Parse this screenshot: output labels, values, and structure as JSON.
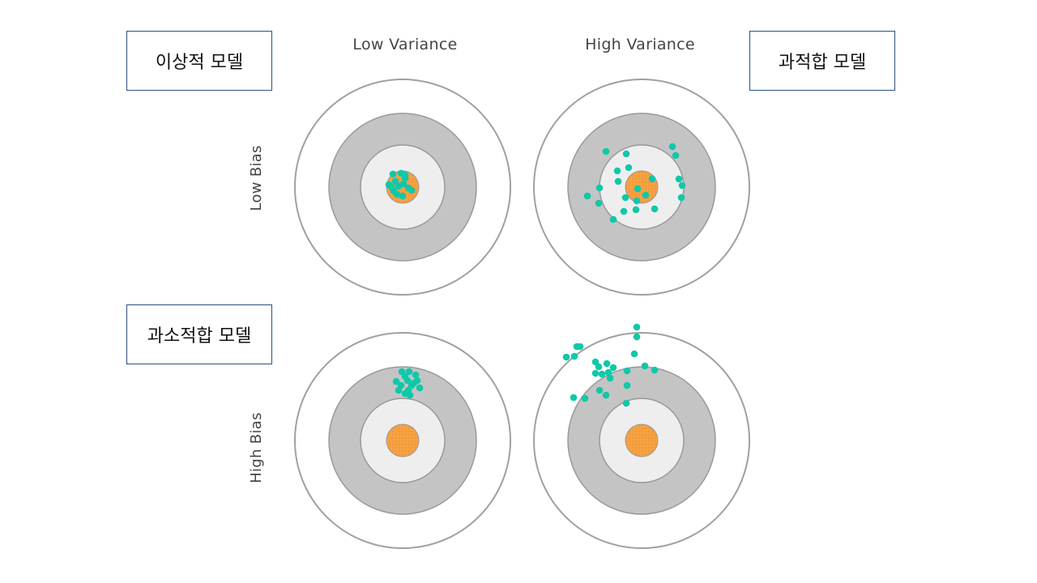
{
  "columns": [
    "Low Variance",
    "High Variance"
  ],
  "rows": [
    "Low Bias",
    "High Bias"
  ],
  "model_labels": {
    "ideal": "이상적 모델",
    "overfit": "과적합 모델",
    "underfit": "과소적합 모델"
  },
  "colors": {
    "outer_ring_stroke": "#a0a0a0",
    "middle_ring_fill": "#c4c4c4",
    "inner_ring_fill": "#eeeeee",
    "bullseye_fill": "#f5a040",
    "dot_fill": "#10c8a8"
  }
}
